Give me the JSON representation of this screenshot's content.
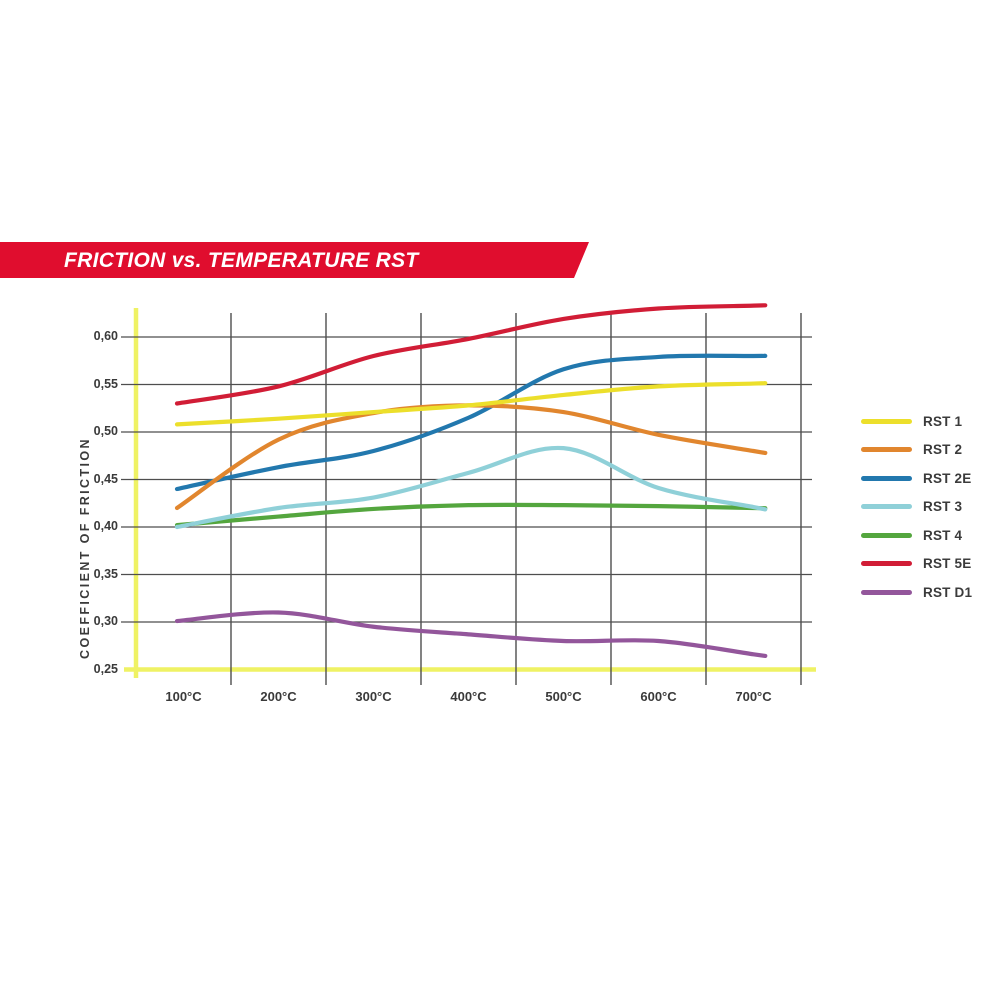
{
  "banner": {
    "title": "FRICTION vs. TEMPERATURE RST",
    "bg_color": "#e00d2e",
    "text_color": "#ffffff"
  },
  "chart_data": {
    "type": "line",
    "title": "FRICTION vs. TEMPERATURE RST",
    "ylabel": "COEFFICIENT OF FRICTION",
    "xlabel": "",
    "x_unit": "°C",
    "x_values": [
      100,
      200,
      300,
      400,
      500,
      600,
      700
    ],
    "x_ticks": [
      "100°C",
      "200°C",
      "300°C",
      "400°C",
      "500°C",
      "600°C",
      "700°C"
    ],
    "y_ticks": [
      "0,60",
      "0,55",
      "0,50",
      "0,45",
      "0,40",
      "0,35",
      "0,30",
      "0,25"
    ],
    "y_tick_values": [
      0.6,
      0.55,
      0.5,
      0.45,
      0.4,
      0.35,
      0.3,
      0.25
    ],
    "ylim": [
      0.25,
      0.64
    ],
    "grid": true,
    "grid_color": "#4e4e4e",
    "axis_highlight_color": "#eff264",
    "legend_position": "right",
    "series": [
      {
        "name": "RST 1",
        "color": "#ecdf2b",
        "values": [
          0.508,
          0.514,
          0.521,
          0.528,
          0.539,
          0.548,
          0.551
        ]
      },
      {
        "name": "RST 2",
        "color": "#e1862e",
        "values": [
          0.42,
          0.492,
          0.52,
          0.528,
          0.521,
          0.497,
          0.48
        ]
      },
      {
        "name": "RST 2E",
        "color": "#2278ae",
        "values": [
          0.44,
          0.463,
          0.48,
          0.515,
          0.566,
          0.579,
          0.58
        ]
      },
      {
        "name": "RST 3",
        "color": "#8fd0d8",
        "values": [
          0.4,
          0.42,
          0.431,
          0.457,
          0.483,
          0.441,
          0.421
        ]
      },
      {
        "name": "RST 4",
        "color": "#54a63e",
        "values": [
          0.402,
          0.411,
          0.419,
          0.423,
          0.423,
          0.422,
          0.42
        ]
      },
      {
        "name": "RST 5E",
        "color": "#d11d36",
        "values": [
          0.53,
          0.548,
          0.58,
          0.598,
          0.619,
          0.63,
          0.633
        ]
      },
      {
        "name": "RST D1",
        "color": "#93569b",
        "values": [
          0.301,
          0.31,
          0.295,
          0.287,
          0.28,
          0.28,
          0.266
        ]
      }
    ]
  }
}
